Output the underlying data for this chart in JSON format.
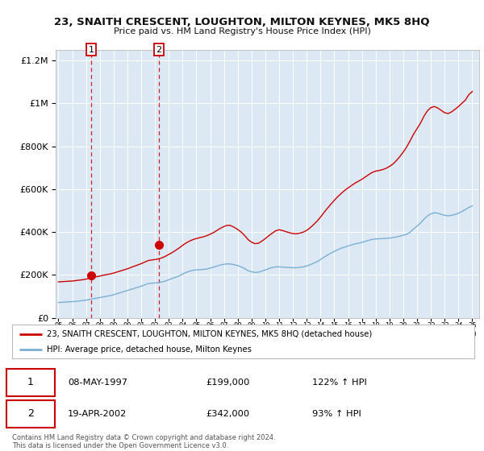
{
  "title": "23, SNAITH CRESCENT, LOUGHTON, MILTON KEYNES, MK5 8HQ",
  "subtitle": "Price paid vs. HM Land Registry's House Price Index (HPI)",
  "legend_line1": "23, SNAITH CRESCENT, LOUGHTON, MILTON KEYNES, MK5 8HQ (detached house)",
  "legend_line2": "HPI: Average price, detached house, Milton Keynes",
  "transaction1_date": "08-MAY-1997",
  "transaction1_price": "£199,000",
  "transaction1_hpi": "122% ↑ HPI",
  "transaction2_date": "19-APR-2002",
  "transaction2_price": "£342,000",
  "transaction2_hpi": "93% ↑ HPI",
  "footer": "Contains HM Land Registry data © Crown copyright and database right 2024.\nThis data is licensed under the Open Government Licence v3.0.",
  "background_color": "#dce9f5",
  "outer_bg_color": "#ffffff",
  "red_line_color": "#cc0000",
  "blue_line_color": "#7aafd4",
  "transaction1_x": 1997.37,
  "transaction1_y": 199000,
  "transaction2_x": 2002.29,
  "transaction2_y": 342000,
  "ylim": [
    0,
    1250000
  ],
  "xlim": [
    1994.8,
    2025.5
  ],
  "years_hpi": [
    1995,
    1995.25,
    1995.5,
    1995.75,
    1996,
    1996.25,
    1996.5,
    1996.75,
    1997,
    1997.25,
    1997.5,
    1997.75,
    1998,
    1998.25,
    1998.5,
    1998.75,
    1999,
    1999.25,
    1999.5,
    1999.75,
    2000,
    2000.25,
    2000.5,
    2000.75,
    2001,
    2001.25,
    2001.5,
    2001.75,
    2002,
    2002.25,
    2002.5,
    2002.75,
    2003,
    2003.25,
    2003.5,
    2003.75,
    2004,
    2004.25,
    2004.5,
    2004.75,
    2005,
    2005.25,
    2005.5,
    2005.75,
    2006,
    2006.25,
    2006.5,
    2006.75,
    2007,
    2007.25,
    2007.5,
    2007.75,
    2008,
    2008.25,
    2008.5,
    2008.75,
    2009,
    2009.25,
    2009.5,
    2009.75,
    2010,
    2010.25,
    2010.5,
    2010.75,
    2011,
    2011.25,
    2011.5,
    2011.75,
    2012,
    2012.25,
    2012.5,
    2012.75,
    2013,
    2013.25,
    2013.5,
    2013.75,
    2014,
    2014.25,
    2014.5,
    2014.75,
    2015,
    2015.25,
    2015.5,
    2015.75,
    2016,
    2016.25,
    2016.5,
    2016.75,
    2017,
    2017.25,
    2017.5,
    2017.75,
    2018,
    2018.25,
    2018.5,
    2018.75,
    2019,
    2019.25,
    2019.5,
    2019.75,
    2020,
    2020.25,
    2020.5,
    2020.75,
    2021,
    2021.25,
    2021.5,
    2021.75,
    2022,
    2022.25,
    2022.5,
    2022.75,
    2023,
    2023.25,
    2023.5,
    2023.75,
    2024,
    2024.25,
    2024.5,
    2024.75,
    2025
  ],
  "hpi_vals": [
    72000,
    73000,
    74000,
    75000,
    76000,
    77000,
    79000,
    81000,
    83000,
    86000,
    89000,
    92000,
    95000,
    98000,
    101000,
    104000,
    108000,
    113000,
    118000,
    123000,
    128000,
    133000,
    138000,
    143000,
    148000,
    154000,
    160000,
    162000,
    163000,
    165000,
    168000,
    172000,
    178000,
    184000,
    190000,
    196000,
    205000,
    212000,
    218000,
    222000,
    224000,
    225000,
    226000,
    228000,
    232000,
    237000,
    242000,
    247000,
    250000,
    252000,
    251000,
    248000,
    244000,
    238000,
    230000,
    220000,
    215000,
    212000,
    213000,
    218000,
    224000,
    230000,
    235000,
    238000,
    238000,
    237000,
    236000,
    235000,
    234000,
    234000,
    236000,
    238000,
    242000,
    248000,
    255000,
    262000,
    272000,
    283000,
    293000,
    302000,
    310000,
    318000,
    325000,
    330000,
    335000,
    340000,
    345000,
    348000,
    352000,
    357000,
    362000,
    366000,
    368000,
    369000,
    370000,
    371000,
    372000,
    374000,
    377000,
    381000,
    385000,
    390000,
    400000,
    415000,
    428000,
    442000,
    460000,
    475000,
    485000,
    490000,
    488000,
    483000,
    478000,
    476000,
    478000,
    482000,
    488000,
    496000,
    505000,
    515000,
    522000
  ],
  "red_vals": [
    168000,
    169000,
    170000,
    171000,
    172000,
    174000,
    176000,
    178000,
    181000,
    185000,
    188000,
    192000,
    195000,
    199000,
    202000,
    205000,
    209000,
    214000,
    219000,
    224000,
    229000,
    235000,
    241000,
    247000,
    253000,
    260000,
    267000,
    270000,
    272000,
    275000,
    280000,
    287000,
    296000,
    305000,
    315000,
    326000,
    338000,
    349000,
    358000,
    365000,
    370000,
    374000,
    378000,
    383000,
    390000,
    398000,
    408000,
    418000,
    426000,
    432000,
    430000,
    422000,
    412000,
    400000,
    384000,
    365000,
    353000,
    346000,
    348000,
    358000,
    370000,
    383000,
    395000,
    406000,
    411000,
    407000,
    402000,
    397000,
    393000,
    392000,
    395000,
    400000,
    408000,
    420000,
    435000,
    451000,
    470000,
    491000,
    511000,
    530000,
    548000,
    565000,
    580000,
    594000,
    606000,
    617000,
    628000,
    637000,
    646000,
    657000,
    668000,
    678000,
    684000,
    687000,
    691000,
    697000,
    706000,
    717000,
    733000,
    752000,
    773000,
    797000,
    826000,
    857000,
    882000,
    908000,
    940000,
    965000,
    980000,
    985000,
    978000,
    967000,
    956000,
    952000,
    960000,
    972000,
    985000,
    1000000,
    1015000,
    1040000,
    1055000
  ]
}
